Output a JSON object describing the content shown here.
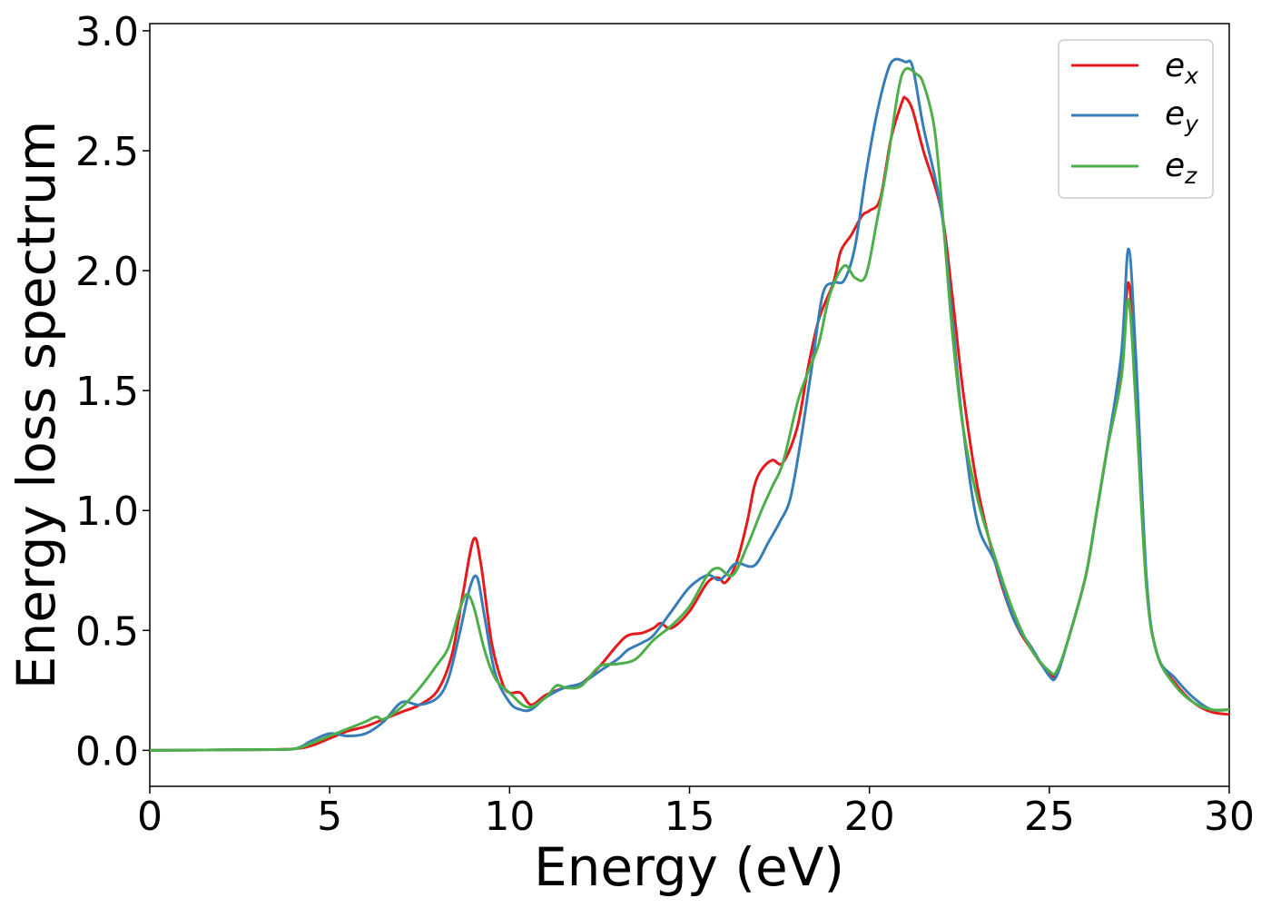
{
  "chart_data": {
    "type": "line",
    "xlabel": "Energy (eV)",
    "ylabel": "Energy loss spectrum",
    "xlim": [
      0,
      30
    ],
    "ylim": [
      -0.15,
      3.03
    ],
    "xticks": [
      0,
      5,
      10,
      15,
      20,
      25,
      30
    ],
    "xtick_labels": [
      "0",
      "5",
      "10",
      "15",
      "20",
      "25",
      "30"
    ],
    "yticks": [
      0.0,
      0.5,
      1.0,
      1.5,
      2.0,
      2.5,
      3.0
    ],
    "ytick_labels": [
      "0.0",
      "0.5",
      "1.0",
      "1.5",
      "2.0",
      "2.5",
      "3.0"
    ],
    "grid": false,
    "legend_position": "top-right",
    "series": [
      {
        "name": "ex",
        "legend_base": "e",
        "legend_sub": "x",
        "color": "#e41a1c",
        "points": [
          [
            0,
            0
          ],
          [
            3,
            0.003
          ],
          [
            4,
            0.006
          ],
          [
            4.5,
            0.02
          ],
          [
            5,
            0.05
          ],
          [
            5.5,
            0.08
          ],
          [
            6,
            0.1
          ],
          [
            6.5,
            0.13
          ],
          [
            7,
            0.16
          ],
          [
            7.5,
            0.19
          ],
          [
            8,
            0.25
          ],
          [
            8.4,
            0.4
          ],
          [
            8.7,
            0.65
          ],
          [
            9,
            0.88
          ],
          [
            9.2,
            0.78
          ],
          [
            9.5,
            0.45
          ],
          [
            9.8,
            0.28
          ],
          [
            10,
            0.24
          ],
          [
            10.3,
            0.24
          ],
          [
            10.6,
            0.19
          ],
          [
            11,
            0.23
          ],
          [
            11.5,
            0.26
          ],
          [
            12,
            0.28
          ],
          [
            12.5,
            0.35
          ],
          [
            13,
            0.44
          ],
          [
            13.3,
            0.48
          ],
          [
            13.7,
            0.49
          ],
          [
            14,
            0.51
          ],
          [
            14.2,
            0.53
          ],
          [
            14.5,
            0.51
          ],
          [
            15,
            0.58
          ],
          [
            15.5,
            0.7
          ],
          [
            15.8,
            0.72
          ],
          [
            16,
            0.7
          ],
          [
            16.3,
            0.78
          ],
          [
            16.6,
            0.95
          ],
          [
            16.8,
            1.1
          ],
          [
            17,
            1.17
          ],
          [
            17.3,
            1.21
          ],
          [
            17.6,
            1.2
          ],
          [
            18,
            1.35
          ],
          [
            18.3,
            1.6
          ],
          [
            18.6,
            1.8
          ],
          [
            19,
            1.95
          ],
          [
            19.2,
            2.08
          ],
          [
            19.5,
            2.15
          ],
          [
            19.8,
            2.23
          ],
          [
            20,
            2.25
          ],
          [
            20.3,
            2.3
          ],
          [
            20.6,
            2.55
          ],
          [
            20.9,
            2.7
          ],
          [
            21,
            2.72
          ],
          [
            21.2,
            2.67
          ],
          [
            21.5,
            2.5
          ],
          [
            22,
            2.25
          ],
          [
            22.3,
            1.9
          ],
          [
            22.6,
            1.5
          ],
          [
            23,
            1.1
          ],
          [
            23.5,
            0.78
          ],
          [
            24,
            0.55
          ],
          [
            24.5,
            0.42
          ],
          [
            25,
            0.32
          ],
          [
            25.2,
            0.32
          ],
          [
            25.5,
            0.45
          ],
          [
            26,
            0.72
          ],
          [
            26.3,
            0.98
          ],
          [
            26.6,
            1.25
          ],
          [
            27,
            1.6
          ],
          [
            27.2,
            1.95
          ],
          [
            27.4,
            1.55
          ],
          [
            27.7,
            0.7
          ],
          [
            28,
            0.4
          ],
          [
            28.5,
            0.28
          ],
          [
            29,
            0.2
          ],
          [
            29.5,
            0.16
          ],
          [
            30,
            0.15
          ]
        ]
      },
      {
        "name": "ey",
        "legend_base": "e",
        "legend_sub": "y",
        "color": "#377eb8",
        "points": [
          [
            0,
            0
          ],
          [
            3,
            0.003
          ],
          [
            4,
            0.006
          ],
          [
            4.5,
            0.04
          ],
          [
            5,
            0.07
          ],
          [
            5.5,
            0.06
          ],
          [
            6,
            0.07
          ],
          [
            6.5,
            0.12
          ],
          [
            7,
            0.2
          ],
          [
            7.5,
            0.19
          ],
          [
            8,
            0.22
          ],
          [
            8.3,
            0.3
          ],
          [
            8.6,
            0.48
          ],
          [
            8.9,
            0.68
          ],
          [
            9.1,
            0.72
          ],
          [
            9.3,
            0.56
          ],
          [
            9.6,
            0.32
          ],
          [
            10,
            0.2
          ],
          [
            10.3,
            0.17
          ],
          [
            10.6,
            0.17
          ],
          [
            11,
            0.22
          ],
          [
            11.5,
            0.26
          ],
          [
            12,
            0.28
          ],
          [
            12.5,
            0.33
          ],
          [
            13,
            0.38
          ],
          [
            13.3,
            0.42
          ],
          [
            13.7,
            0.45
          ],
          [
            14,
            0.48
          ],
          [
            14.5,
            0.58
          ],
          [
            15,
            0.68
          ],
          [
            15.5,
            0.73
          ],
          [
            15.8,
            0.71
          ],
          [
            16,
            0.73
          ],
          [
            16.3,
            0.78
          ],
          [
            16.8,
            0.77
          ],
          [
            17.2,
            0.87
          ],
          [
            17.5,
            0.95
          ],
          [
            17.8,
            1.05
          ],
          [
            18.1,
            1.3
          ],
          [
            18.4,
            1.6
          ],
          [
            18.7,
            1.9
          ],
          [
            19,
            1.95
          ],
          [
            19.3,
            1.96
          ],
          [
            19.6,
            2.1
          ],
          [
            19.9,
            2.4
          ],
          [
            20.2,
            2.65
          ],
          [
            20.5,
            2.83
          ],
          [
            20.7,
            2.88
          ],
          [
            21,
            2.87
          ],
          [
            21.2,
            2.85
          ],
          [
            21.5,
            2.6
          ],
          [
            22,
            2.25
          ],
          [
            22.3,
            1.8
          ],
          [
            22.6,
            1.35
          ],
          [
            23,
            0.95
          ],
          [
            23.5,
            0.78
          ],
          [
            24,
            0.55
          ],
          [
            24.5,
            0.43
          ],
          [
            25,
            0.31
          ],
          [
            25.2,
            0.31
          ],
          [
            25.5,
            0.45
          ],
          [
            26,
            0.72
          ],
          [
            26.3,
            0.98
          ],
          [
            26.6,
            1.25
          ],
          [
            27,
            1.65
          ],
          [
            27.2,
            2.09
          ],
          [
            27.4,
            1.65
          ],
          [
            27.7,
            0.72
          ],
          [
            28,
            0.4
          ],
          [
            28.5,
            0.3
          ],
          [
            29,
            0.22
          ],
          [
            29.5,
            0.17
          ],
          [
            30,
            0.17
          ]
        ]
      },
      {
        "name": "ez",
        "legend_base": "e",
        "legend_sub": "z",
        "color": "#4daf4a",
        "points": [
          [
            0,
            0
          ],
          [
            3,
            0.003
          ],
          [
            4,
            0.006
          ],
          [
            4.5,
            0.03
          ],
          [
            5,
            0.06
          ],
          [
            5.5,
            0.09
          ],
          [
            6,
            0.12
          ],
          [
            6.3,
            0.14
          ],
          [
            6.5,
            0.13
          ],
          [
            7,
            0.18
          ],
          [
            7.5,
            0.26
          ],
          [
            8,
            0.36
          ],
          [
            8.3,
            0.43
          ],
          [
            8.6,
            0.58
          ],
          [
            8.8,
            0.65
          ],
          [
            9,
            0.6
          ],
          [
            9.3,
            0.42
          ],
          [
            9.6,
            0.3
          ],
          [
            10,
            0.24
          ],
          [
            10.5,
            0.18
          ],
          [
            11,
            0.22
          ],
          [
            11.3,
            0.27
          ],
          [
            11.6,
            0.26
          ],
          [
            12,
            0.27
          ],
          [
            12.5,
            0.35
          ],
          [
            13,
            0.36
          ],
          [
            13.5,
            0.38
          ],
          [
            14,
            0.46
          ],
          [
            14.5,
            0.52
          ],
          [
            15,
            0.6
          ],
          [
            15.5,
            0.73
          ],
          [
            15.8,
            0.76
          ],
          [
            16.2,
            0.73
          ],
          [
            16.6,
            0.85
          ],
          [
            17,
            1.0
          ],
          [
            17.3,
            1.1
          ],
          [
            17.6,
            1.2
          ],
          [
            18,
            1.45
          ],
          [
            18.3,
            1.58
          ],
          [
            18.6,
            1.7
          ],
          [
            18.9,
            1.9
          ],
          [
            19.3,
            2.02
          ],
          [
            19.6,
            1.97
          ],
          [
            19.9,
            1.98
          ],
          [
            20.2,
            2.2
          ],
          [
            20.5,
            2.45
          ],
          [
            20.8,
            2.75
          ],
          [
            21,
            2.84
          ],
          [
            21.3,
            2.82
          ],
          [
            21.5,
            2.78
          ],
          [
            21.8,
            2.6
          ],
          [
            22,
            2.3
          ],
          [
            22.3,
            1.75
          ],
          [
            22.6,
            1.35
          ],
          [
            23,
            1.05
          ],
          [
            23.5,
            0.8
          ],
          [
            24,
            0.58
          ],
          [
            24.5,
            0.42
          ],
          [
            25,
            0.33
          ],
          [
            25.2,
            0.33
          ],
          [
            25.5,
            0.45
          ],
          [
            26,
            0.72
          ],
          [
            26.3,
            0.98
          ],
          [
            26.6,
            1.25
          ],
          [
            27,
            1.55
          ],
          [
            27.2,
            1.88
          ],
          [
            27.4,
            1.45
          ],
          [
            27.7,
            0.68
          ],
          [
            28,
            0.4
          ],
          [
            28.5,
            0.27
          ],
          [
            29,
            0.2
          ],
          [
            29.5,
            0.17
          ],
          [
            30,
            0.17
          ]
        ]
      }
    ]
  }
}
